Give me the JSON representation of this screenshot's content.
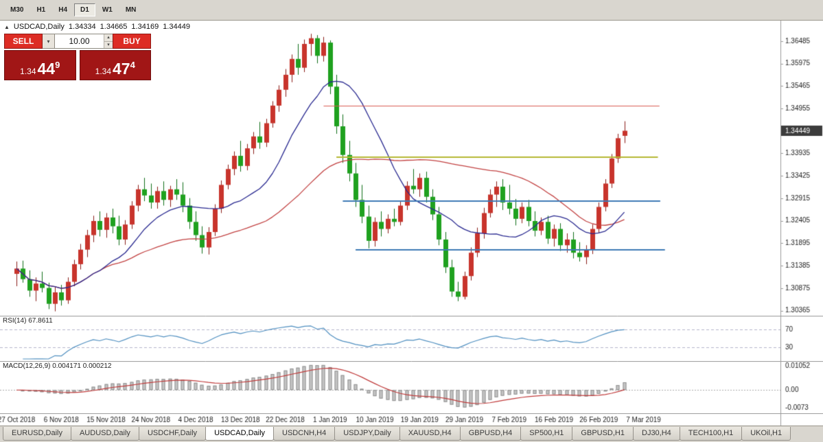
{
  "toolbar": {
    "timeframes": [
      {
        "label": "M30",
        "active": false
      },
      {
        "label": "H1",
        "active": false
      },
      {
        "label": "H4",
        "active": false
      },
      {
        "label": "D1",
        "active": true
      },
      {
        "label": "W1",
        "active": false
      },
      {
        "label": "MN",
        "active": false
      }
    ]
  },
  "ohlc": {
    "marker": "▲",
    "symbol": "USDCAD,Daily",
    "open": "1.34334",
    "high": "1.34665",
    "low": "1.34169",
    "close": "1.34449"
  },
  "trade_panel": {
    "sell_label": "SELL",
    "buy_label": "BUY",
    "volume": "10.00",
    "sell_price": {
      "prefix": "1.34",
      "big": "44",
      "sup": "9"
    },
    "buy_price": {
      "prefix": "1.34",
      "big": "47",
      "sup": "4"
    }
  },
  "tabs": [
    {
      "label": "EURUSD,Daily",
      "active": false
    },
    {
      "label": "AUDUSD,Daily",
      "active": false
    },
    {
      "label": "USDCHF,Daily",
      "active": false
    },
    {
      "label": "USDCAD,Daily",
      "active": true
    },
    {
      "label": "USDCNH,H4",
      "active": false
    },
    {
      "label": "USDJPY,Daily",
      "active": false
    },
    {
      "label": "XAUUSD,H4",
      "active": false
    },
    {
      "label": "GBPUSD,H4",
      "active": false
    },
    {
      "label": "SP500,H1",
      "active": false
    },
    {
      "label": "GBPUSD,H1",
      "active": false
    },
    {
      "label": "DJ30,H4",
      "active": false
    },
    {
      "label": "TECH100,H1",
      "active": false
    },
    {
      "label": "UKOil,H1",
      "active": false
    }
  ],
  "colors": {
    "bull": "#c8342c",
    "bear": "#1fa11f",
    "wick_bull": "#8a1b16",
    "wick_bear": "#0e6e16",
    "rsi_line": "#4f8fc0",
    "rsi_level": "#b3b3cc",
    "macd_hist": "#c6c6c6",
    "macd_hist_border": "#8f8f8f",
    "macd_signal": "#c03a3a",
    "price_tag_bg": "#3c3c3c",
    "price_tag_text": "#ffffff",
    "panel_border": "#9a9a9a",
    "axis_text": "#1a1a1a"
  },
  "chart_data": {
    "type": "candlestick",
    "title": "USDCAD,Daily",
    "symbol": "USDCAD",
    "timeframe": "Daily",
    "ylim": [
      1.3025,
      1.3695
    ],
    "y_ticks": [
      "1.36485",
      "1.35975",
      "1.35465",
      "1.34955",
      "1.33935",
      "1.33425",
      "1.32915",
      "1.32405",
      "1.31895",
      "1.31385",
      "1.30875",
      "1.30365"
    ],
    "current_price": "1.34449",
    "x_tick_labels": [
      "27 Oct 2018",
      "6 Nov 2018",
      "15 Nov 2018",
      "24 Nov 2018",
      "4 Dec 2018",
      "13 Dec 2018",
      "22 Dec 2018",
      "1 Jan 2019",
      "10 Jan 2019",
      "19 Jan 2019",
      "29 Jan 2019",
      "7 Feb 2019",
      "16 Feb 2019",
      "26 Feb 2019",
      "7 Mar 2019"
    ],
    "bars_per_label": 7,
    "candles": [
      [
        1.312,
        1.3148,
        1.3092,
        1.3132
      ],
      [
        1.3132,
        1.315,
        1.31,
        1.3108
      ],
      [
        1.3108,
        1.3128,
        1.3068,
        1.3082
      ],
      [
        1.3082,
        1.3112,
        1.3058,
        1.3098
      ],
      [
        1.3098,
        1.3125,
        1.3078,
        1.3088
      ],
      [
        1.3088,
        1.31,
        1.304,
        1.3052
      ],
      [
        1.3052,
        1.309,
        1.3035,
        1.3078
      ],
      [
        1.3078,
        1.3095,
        1.3048,
        1.306
      ],
      [
        1.306,
        1.3112,
        1.3052,
        1.3102
      ],
      [
        1.3102,
        1.3152,
        1.3092,
        1.3142
      ],
      [
        1.3142,
        1.3188,
        1.313,
        1.3175
      ],
      [
        1.3175,
        1.322,
        1.3158,
        1.3208
      ],
      [
        1.3208,
        1.3252,
        1.3192,
        1.324
      ],
      [
        1.324,
        1.3262,
        1.3205,
        1.322
      ],
      [
        1.322,
        1.3258,
        1.3202,
        1.3248
      ],
      [
        1.3248,
        1.3268,
        1.3212,
        1.3228
      ],
      [
        1.3228,
        1.3252,
        1.3185,
        1.3198
      ],
      [
        1.3198,
        1.3242,
        1.3186,
        1.3232
      ],
      [
        1.3232,
        1.3285,
        1.3222,
        1.3275
      ],
      [
        1.3275,
        1.3322,
        1.3262,
        1.3312
      ],
      [
        1.3312,
        1.3338,
        1.3285,
        1.3298
      ],
      [
        1.3298,
        1.3325,
        1.3268,
        1.3282
      ],
      [
        1.3282,
        1.3318,
        1.3268,
        1.3308
      ],
      [
        1.3308,
        1.333,
        1.3275,
        1.3288
      ],
      [
        1.3288,
        1.332,
        1.3272,
        1.3312
      ],
      [
        1.3312,
        1.3335,
        1.3288,
        1.33
      ],
      [
        1.33,
        1.3328,
        1.326,
        1.3275
      ],
      [
        1.3275,
        1.3292,
        1.3222,
        1.3238
      ],
      [
        1.3238,
        1.3262,
        1.3195,
        1.3208
      ],
      [
        1.3208,
        1.3228,
        1.3166,
        1.318
      ],
      [
        1.318,
        1.3226,
        1.3164,
        1.3215
      ],
      [
        1.3215,
        1.3278,
        1.3206,
        1.3268
      ],
      [
        1.3268,
        1.3332,
        1.3258,
        1.3322
      ],
      [
        1.3322,
        1.3368,
        1.3312,
        1.3358
      ],
      [
        1.3358,
        1.3398,
        1.3344,
        1.3388
      ],
      [
        1.3388,
        1.3422,
        1.3352,
        1.3365
      ],
      [
        1.3365,
        1.3415,
        1.3355,
        1.3405
      ],
      [
        1.3405,
        1.3442,
        1.3392,
        1.3432
      ],
      [
        1.3432,
        1.3465,
        1.3404,
        1.3418
      ],
      [
        1.3418,
        1.3472,
        1.3408,
        1.3462
      ],
      [
        1.3462,
        1.3512,
        1.3452,
        1.3502
      ],
      [
        1.3502,
        1.3548,
        1.3488,
        1.3538
      ],
      [
        1.3538,
        1.3585,
        1.3522,
        1.3572
      ],
      [
        1.3572,
        1.3618,
        1.3555,
        1.3608
      ],
      [
        1.3608,
        1.3642,
        1.3572,
        1.3588
      ],
      [
        1.3588,
        1.3652,
        1.3578,
        1.3642
      ],
      [
        1.3642,
        1.3665,
        1.3615,
        1.3655
      ],
      [
        1.3655,
        1.3662,
        1.3598,
        1.3615
      ],
      [
        1.3615,
        1.3658,
        1.3602,
        1.3645
      ],
      [
        1.3645,
        1.365,
        1.3528,
        1.3545
      ],
      [
        1.3545,
        1.3572,
        1.3438,
        1.3455
      ],
      [
        1.3455,
        1.3482,
        1.3372,
        1.339
      ],
      [
        1.339,
        1.3422,
        1.333,
        1.3348
      ],
      [
        1.3348,
        1.3372,
        1.3272,
        1.3288
      ],
      [
        1.3288,
        1.3322,
        1.3235,
        1.325
      ],
      [
        1.325,
        1.3275,
        1.3178,
        1.3195
      ],
      [
        1.3195,
        1.3248,
        1.3182,
        1.3238
      ],
      [
        1.3238,
        1.3262,
        1.3205,
        1.3222
      ],
      [
        1.3222,
        1.3255,
        1.3212,
        1.3245
      ],
      [
        1.3245,
        1.3268,
        1.3228,
        1.3238
      ],
      [
        1.3238,
        1.3285,
        1.323,
        1.3275
      ],
      [
        1.3275,
        1.333,
        1.3265,
        1.332
      ],
      [
        1.332,
        1.3358,
        1.3302,
        1.3312
      ],
      [
        1.3312,
        1.3348,
        1.3295,
        1.3338
      ],
      [
        1.3338,
        1.3352,
        1.3282,
        1.3295
      ],
      [
        1.3295,
        1.3312,
        1.3242,
        1.3255
      ],
      [
        1.3255,
        1.3272,
        1.3185,
        1.3198
      ],
      [
        1.3198,
        1.3215,
        1.3122,
        1.3135
      ],
      [
        1.3135,
        1.3152,
        1.3068,
        1.308
      ],
      [
        1.308,
        1.3102,
        1.3058,
        1.3068
      ],
      [
        1.3068,
        1.3125,
        1.3062,
        1.3115
      ],
      [
        1.3115,
        1.318,
        1.3105,
        1.3168
      ],
      [
        1.3168,
        1.3225,
        1.3158,
        1.3212
      ],
      [
        1.3212,
        1.327,
        1.32,
        1.3258
      ],
      [
        1.3258,
        1.3312,
        1.3248,
        1.33
      ],
      [
        1.33,
        1.333,
        1.3272,
        1.3318
      ],
      [
        1.3318,
        1.3335,
        1.3265,
        1.3282
      ],
      [
        1.3282,
        1.3322,
        1.3255,
        1.3268
      ],
      [
        1.3268,
        1.329,
        1.323,
        1.3245
      ],
      [
        1.3245,
        1.3282,
        1.3235,
        1.3272
      ],
      [
        1.3272,
        1.3288,
        1.3228,
        1.324
      ],
      [
        1.324,
        1.3262,
        1.3205,
        1.3218
      ],
      [
        1.3218,
        1.3248,
        1.3208,
        1.3238
      ],
      [
        1.3238,
        1.3252,
        1.3188,
        1.32
      ],
      [
        1.32,
        1.3232,
        1.3182,
        1.3222
      ],
      [
        1.3222,
        1.3235,
        1.3172,
        1.3185
      ],
      [
        1.3185,
        1.3212,
        1.3168,
        1.3198
      ],
      [
        1.3198,
        1.3215,
        1.3155,
        1.3168
      ],
      [
        1.3168,
        1.3192,
        1.3148,
        1.3158
      ],
      [
        1.3158,
        1.3185,
        1.3142,
        1.3175
      ],
      [
        1.3175,
        1.3232,
        1.3165,
        1.3222
      ],
      [
        1.3222,
        1.3282,
        1.3212,
        1.3272
      ],
      [
        1.3272,
        1.3335,
        1.3262,
        1.3325
      ],
      [
        1.3325,
        1.3392,
        1.3315,
        1.3382
      ],
      [
        1.3382,
        1.3438,
        1.3372,
        1.3428
      ],
      [
        1.34334,
        1.34665,
        1.34169,
        1.34449
      ]
    ],
    "ma": {
      "fast_period": 13,
      "fast_color": "#282890",
      "slow_period": 40,
      "slow_color": "#c24040"
    },
    "hlines": [
      {
        "price": 1.3502,
        "color": "#d95b52",
        "width": 1,
        "start_bar": 48,
        "end_frac": 0.845
      },
      {
        "price": 1.3385,
        "color": "#b5b832",
        "width": 2,
        "start_bar": 50,
        "end_frac": 0.843
      },
      {
        "price": 1.3285,
        "color": "#3e7ab5",
        "width": 2,
        "start_bar": 51,
        "end_frac": 0.846
      },
      {
        "price": 1.3175,
        "color": "#3e7ab5",
        "width": 2,
        "start_bar": 53,
        "end_frac": 0.852
      }
    ],
    "rsi": {
      "label": "RSI(14) 67.8611",
      "period": 14,
      "range": [
        0,
        100
      ],
      "levels": [
        {
          "value": 70,
          "label": "70"
        },
        {
          "value": 30,
          "label": "30"
        }
      ]
    },
    "macd": {
      "label": "MACD(12,26,9) 0.004171 0.000212",
      "fast": 12,
      "slow": 26,
      "signal": 9,
      "axis": [
        {
          "value": 0.01052,
          "label": "0.01052"
        },
        {
          "value": 0,
          "label": "0.00"
        },
        {
          "value": -0.0073,
          "label": "-0.0073"
        }
      ]
    }
  }
}
